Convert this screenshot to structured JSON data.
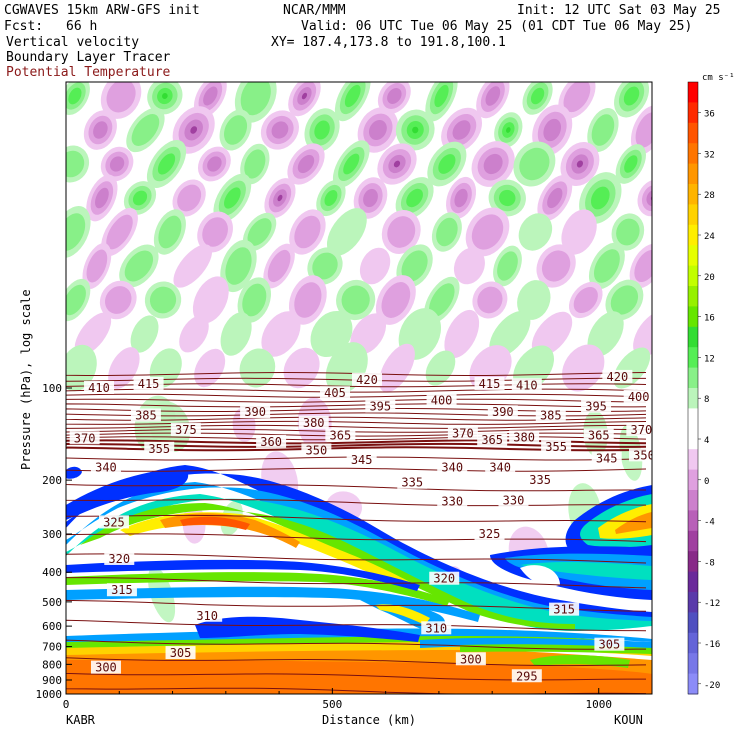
{
  "header": {
    "title": "CGWAVES 15km ARW-GFS init",
    "org": "NCAR/MMM",
    "init": "Init: 12 UTC Sat 03 May 25",
    "fcst_label": "Fcst:",
    "fcst_value": "66 h",
    "valid": "Valid: 06 UTC Tue 06 May 25 (01 CDT Tue 06 May 25)",
    "field1": "Vertical velocity",
    "field2": "Boundary Layer Tracer",
    "field3": "Potential Temperature",
    "xy": "XY= 187.4,173.8 to 191.8,100.1"
  },
  "chart_data": {
    "type": "heatmap",
    "ylabel": "Pressure (hPa), log scale",
    "xlabel": "Distance (km)",
    "x_ticks": [
      "0",
      "500",
      "1000"
    ],
    "x_range": [
      0,
      1100
    ],
    "y_ticks": [
      "100",
      "200",
      "300",
      "400",
      "500",
      "600",
      "700",
      "800",
      "900",
      "1000"
    ],
    "y_range_hpa": [
      10,
      1000
    ],
    "y_scale": "log",
    "left_station": "KABR",
    "right_station": "KOUN",
    "colorbar": {
      "unit": "cm s⁻¹",
      "labels": [
        "36",
        "32",
        "28",
        "24",
        "20",
        "16",
        "12",
        "8",
        "4",
        "0",
        "-4",
        "-8",
        "-12",
        "-16",
        "-20"
      ],
      "colors": [
        "#ff0000",
        "#ff2a00",
        "#ff5500",
        "#ff7500",
        "#ff9600",
        "#ffb400",
        "#ffd200",
        "#ffee00",
        "#e6ff00",
        "#c2ff00",
        "#96f000",
        "#66e600",
        "#33dd33",
        "#55ee55",
        "#88f088",
        "#bbf5bb",
        "#ffffff",
        "#ffffff",
        "#f0c8f0",
        "#dfa0df",
        "#cc80cc",
        "#b860b8",
        "#a040a0",
        "#882a88",
        "#6a2a9a",
        "#5a3aaa",
        "#5050c0",
        "#6464d8",
        "#7878e8",
        "#8c8cf8"
      ]
    },
    "theta_labels": [
      {
        "value": "420",
        "x": 565,
        "p": 94
      },
      {
        "value": "420",
        "x": 1035,
        "p": 92
      },
      {
        "value": "415",
        "x": 155,
        "p": 97
      },
      {
        "value": "415",
        "x": 795,
        "p": 97
      },
      {
        "value": "410",
        "x": 62,
        "p": 100
      },
      {
        "value": "410",
        "x": 865,
        "p": 98
      },
      {
        "value": "405",
        "x": 505,
        "p": 104
      },
      {
        "value": "400",
        "x": 705,
        "p": 110
      },
      {
        "value": "400",
        "x": 1075,
        "p": 107
      },
      {
        "value": "395",
        "x": 590,
        "p": 115
      },
      {
        "value": "395",
        "x": 995,
        "p": 115
      },
      {
        "value": "390",
        "x": 355,
        "p": 120
      },
      {
        "value": "390",
        "x": 820,
        "p": 120
      },
      {
        "value": "385",
        "x": 150,
        "p": 123
      },
      {
        "value": "385",
        "x": 910,
        "p": 123
      },
      {
        "value": "380",
        "x": 465,
        "p": 130
      },
      {
        "value": "380",
        "x": 860,
        "p": 145
      },
      {
        "value": "375",
        "x": 225,
        "p": 137
      },
      {
        "value": "370",
        "x": 35,
        "p": 146
      },
      {
        "value": "370",
        "x": 745,
        "p": 141
      },
      {
        "value": "370",
        "x": 1080,
        "p": 137
      },
      {
        "value": "365",
        "x": 515,
        "p": 143
      },
      {
        "value": "365",
        "x": 1000,
        "p": 143
      },
      {
        "value": "360",
        "x": 385,
        "p": 150
      },
      {
        "value": "355",
        "x": 175,
        "p": 158
      },
      {
        "value": "355",
        "x": 920,
        "p": 156
      },
      {
        "value": "350",
        "x": 470,
        "p": 160
      },
      {
        "value": "350",
        "x": 1085,
        "p": 166
      },
      {
        "value": "345",
        "x": 555,
        "p": 172
      },
      {
        "value": "345",
        "x": 1015,
        "p": 170
      },
      {
        "value": "340",
        "x": 75,
        "p": 182
      },
      {
        "value": "340",
        "x": 725,
        "p": 182
      },
      {
        "value": "340",
        "x": 815,
        "p": 182
      },
      {
        "value": "335",
        "x": 650,
        "p": 204
      },
      {
        "value": "335",
        "x": 890,
        "p": 200
      },
      {
        "value": "330",
        "x": 725,
        "p": 235
      },
      {
        "value": "330",
        "x": 840,
        "p": 233
      },
      {
        "value": "325",
        "x": 90,
        "p": 275
      },
      {
        "value": "325",
        "x": 795,
        "p": 300
      },
      {
        "value": "320",
        "x": 100,
        "p": 362
      },
      {
        "value": "320",
        "x": 710,
        "p": 420
      },
      {
        "value": "315",
        "x": 105,
        "p": 458
      },
      {
        "value": "315",
        "x": 935,
        "p": 530
      },
      {
        "value": "310",
        "x": 265,
        "p": 555
      },
      {
        "value": "310",
        "x": 695,
        "p": 610
      },
      {
        "value": "305",
        "x": 215,
        "p": 735
      },
      {
        "value": "305",
        "x": 1020,
        "p": 690
      },
      {
        "value": "300",
        "x": 75,
        "p": 820
      },
      {
        "value": "300",
        "x": 760,
        "p": 770
      },
      {
        "value": "295",
        "x": 865,
        "p": 875
      },
      {
        "value": "365",
        "x": 800,
        "p": 148
      }
    ]
  }
}
